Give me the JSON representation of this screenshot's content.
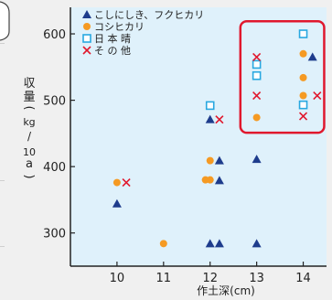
{
  "chart_data": {
    "type": "scatter",
    "xlabel": "作土深(cm)",
    "ylabel_chars": [
      "収",
      "量",
      "(",
      "kg",
      "/",
      "10",
      "a",
      ")"
    ],
    "xlim": [
      9,
      14.5
    ],
    "ylim": [
      250,
      640
    ],
    "x_ticks": [
      10,
      11,
      12,
      13,
      14
    ],
    "y_ticks": [
      300,
      400,
      500,
      600
    ],
    "grid": false,
    "legend_position": "top-left",
    "colors": {
      "plot_bg": "#dff1fb",
      "triangle": "#1e3c8c",
      "circle": "#f59a23",
      "square": "#29a8e0",
      "cross": "#e0182d",
      "highlight": "#e0182d"
    },
    "series": [
      {
        "name": "こしにしき、フクヒカリ",
        "marker": "triangle",
        "points": [
          [
            10,
            344
          ],
          [
            12,
            471
          ],
          [
            12.2,
            409
          ],
          [
            12.2,
            379
          ],
          [
            12,
            284
          ],
          [
            12.2,
            284
          ],
          [
            13,
            411
          ],
          [
            13,
            284
          ],
          [
            14.2,
            565
          ]
        ]
      },
      {
        "name": "コシヒカリ",
        "marker": "circle",
        "points": [
          [
            10,
            376
          ],
          [
            11,
            284
          ],
          [
            11.9,
            380
          ],
          [
            12,
            380
          ],
          [
            12,
            409
          ],
          [
            13,
            474
          ],
          [
            14,
            570
          ],
          [
            14,
            534
          ],
          [
            14,
            507
          ]
        ]
      },
      {
        "name": "日 本 晴",
        "marker": "square",
        "points": [
          [
            12,
            492
          ],
          [
            13,
            554
          ],
          [
            13,
            537
          ],
          [
            14,
            600
          ],
          [
            14,
            493
          ]
        ]
      },
      {
        "name": "そ の 他",
        "marker": "cross",
        "points": [
          [
            10.2,
            376
          ],
          [
            12.2,
            471
          ],
          [
            13,
            565
          ],
          [
            13,
            507
          ],
          [
            14,
            476
          ],
          [
            14.3,
            507
          ]
        ]
      }
    ]
  }
}
